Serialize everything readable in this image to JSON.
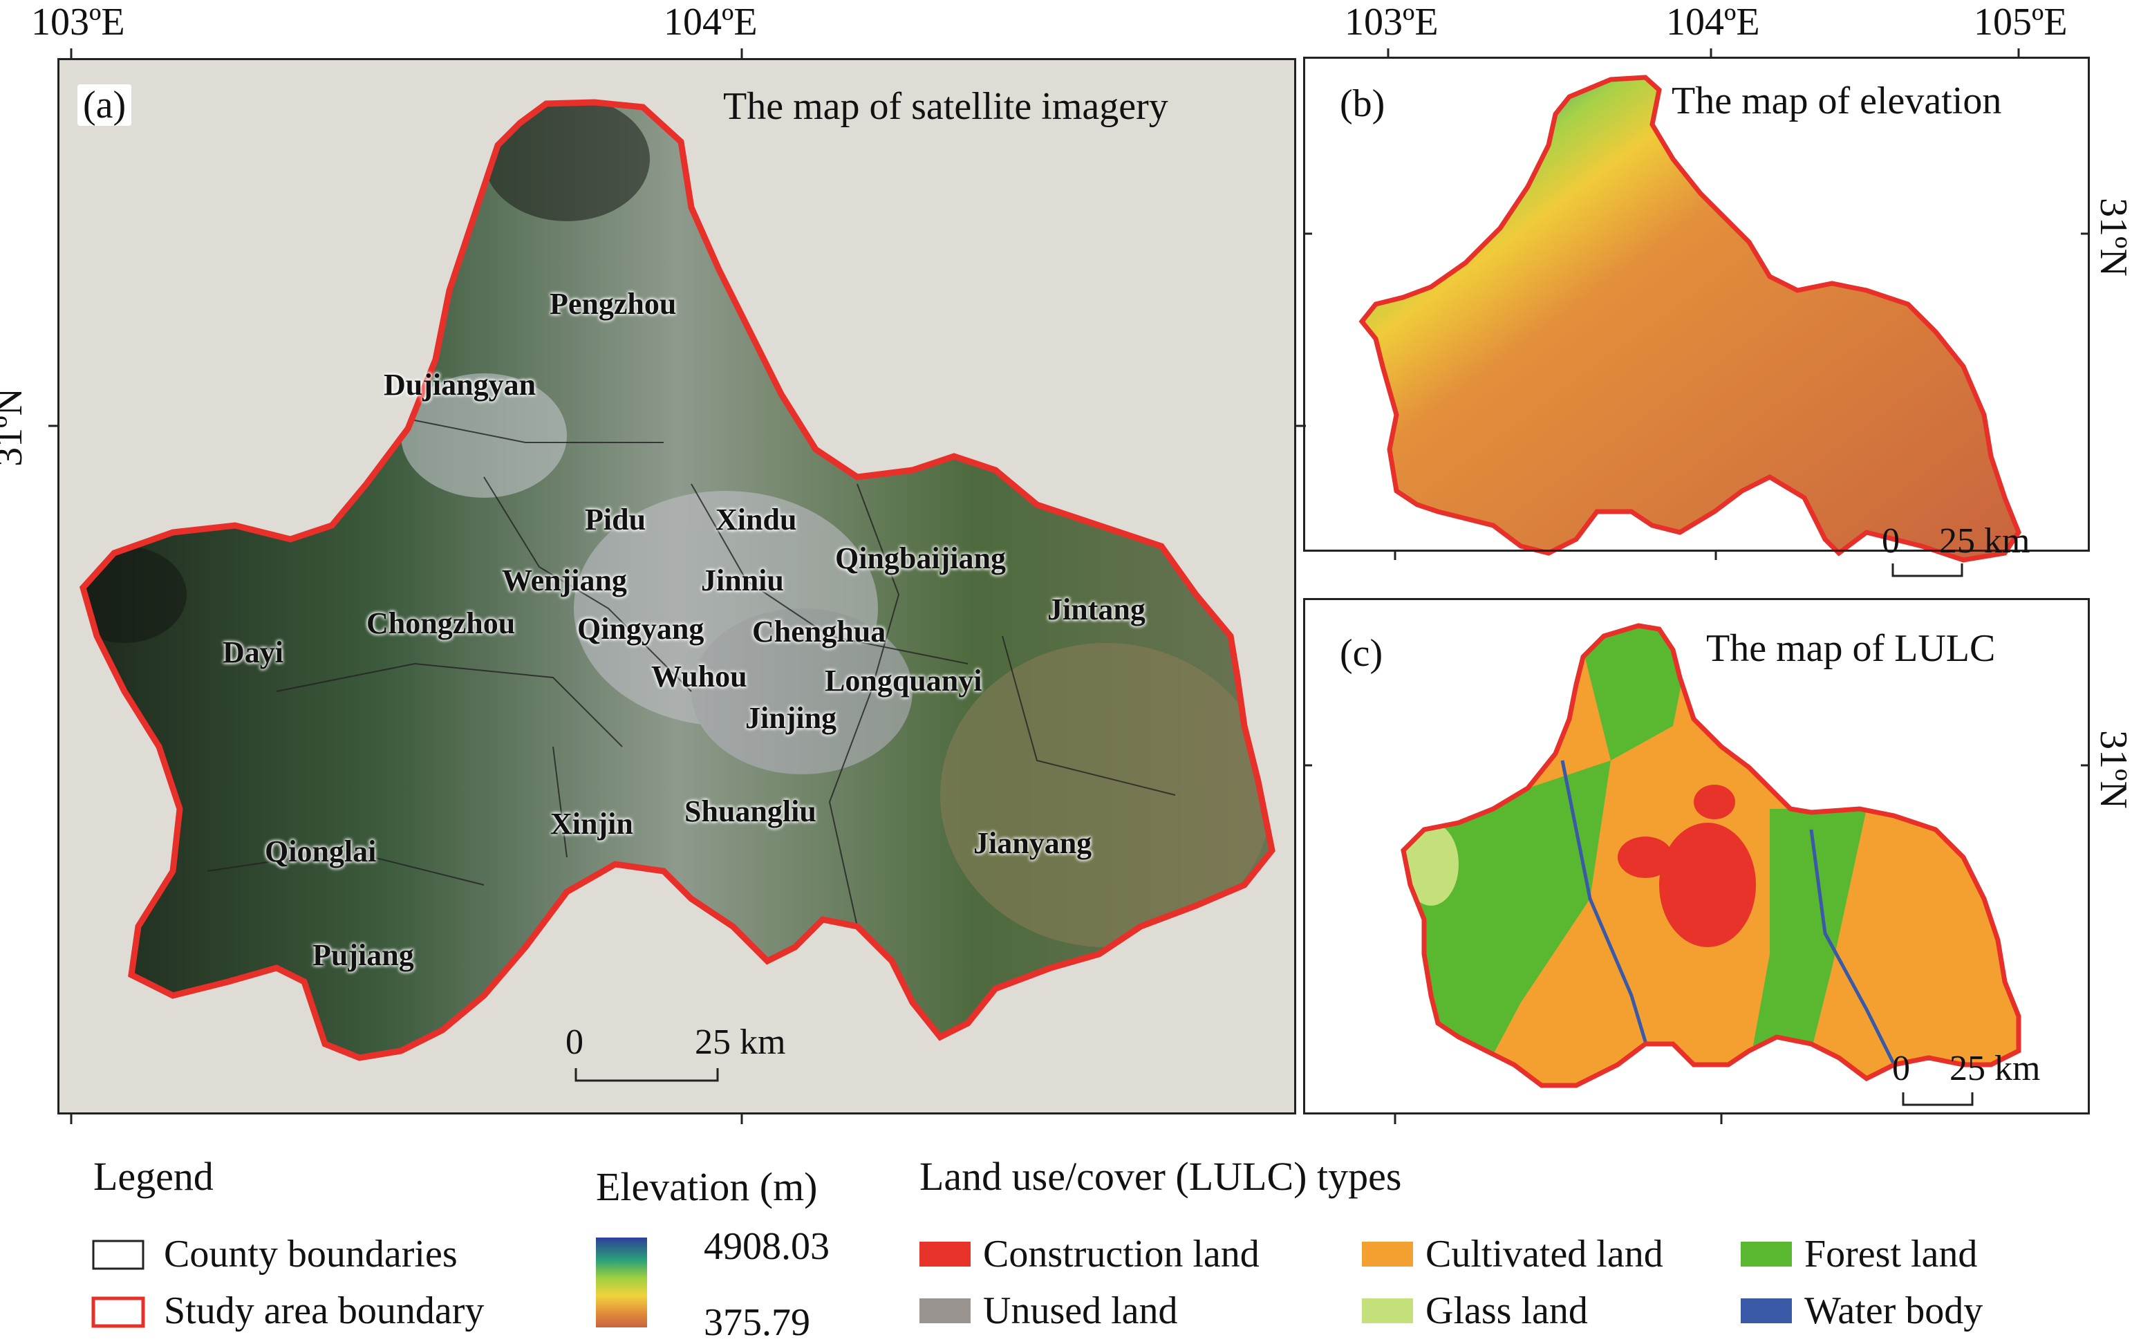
{
  "panels": {
    "a": {
      "label": "(a)",
      "title": "The map of satellite imagery",
      "lon_ticks": [
        "103ºE",
        "104ºE"
      ],
      "lat_tick": "31ºN",
      "scale": {
        "zero": "0",
        "dist": "25 km"
      },
      "counties": [
        "Pengzhou",
        "Dujiangyan",
        "Pidu",
        "Xindu",
        "Qingbaijiang",
        "Wenjiang",
        "Jinniu",
        "Jintang",
        "Chongzhou",
        "Qingyang",
        "Chenghua",
        "Dayi",
        "Wuhou",
        "Longquanyi",
        "Jinjing",
        "Xinjin",
        "Shuangliu",
        "Jianyang",
        "Qionglai",
        "Pujiang"
      ]
    },
    "b": {
      "label": "(b)",
      "title": "The map of elevation",
      "lon_ticks": [
        "103ºE",
        "104ºE",
        "105ºE"
      ],
      "lat_tick": "31ºN",
      "scale": {
        "zero": "0",
        "dist": "25 km"
      }
    },
    "c": {
      "label": "(c)",
      "title": "The map of LULC",
      "lat_tick": "31ºN",
      "scale": {
        "zero": "0",
        "dist": "25 km"
      }
    }
  },
  "legend": {
    "title": "Legend",
    "items": [
      "County boundaries",
      "Study area boundary"
    ],
    "colors": {
      "county": "#222222",
      "study": "#e8302a"
    }
  },
  "elevation": {
    "title": "Elevation (m)",
    "max": "4908.03",
    "min": "375.79",
    "gradient": [
      "#2e3f9a",
      "#2aa07a",
      "#9ed040",
      "#f2d23c",
      "#e08a3a",
      "#c8643e"
    ]
  },
  "lulc": {
    "title": "Land use/cover (LULC) types",
    "types": [
      {
        "name": "Construction land",
        "color": "#e8332a"
      },
      {
        "name": "Cultivated land",
        "color": "#f4a030"
      },
      {
        "name": "Forest land",
        "color": "#5ab830"
      },
      {
        "name": "Unused land",
        "color": "#9a9491"
      },
      {
        "name": "Glass land",
        "color": "#c4e07a"
      },
      {
        "name": "Water body",
        "color": "#3a5aa8"
      }
    ]
  }
}
